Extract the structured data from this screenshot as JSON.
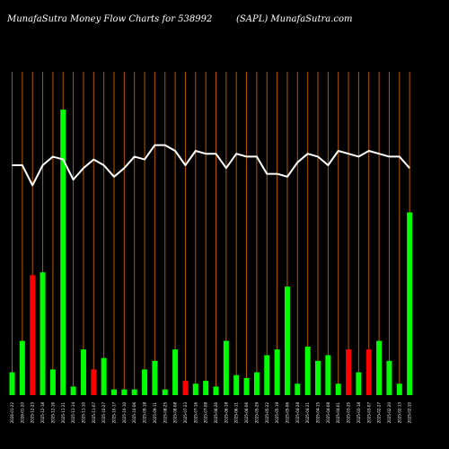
{
  "header": {
    "left": "MunafaSutra  Money Flow  Charts for 538992",
    "right": "(SAPL) MunafaSutra.com"
  },
  "chart_data": {
    "type": "bar",
    "title": "MunafaSutra  Money Flow  Charts for 538992",
    "subtitle": "(SAPL) MunafaSutra.com",
    "ylim": [
      0,
      100
    ],
    "grid": true,
    "categories": [
      "2026-01-22",
      "2026-01-20",
      "2025-12-23",
      "2025-12-18",
      "2025-12-16",
      "2025-11-21",
      "2025-11-14",
      "2025-11-10",
      "2025-11-07",
      "2025-10-27",
      "2025-10-17",
      "2025-10-10",
      "2025-10-06",
      "2025-09-18",
      "2025-09-11",
      "2025-08-25",
      "2025-08-08",
      "2025-07-23",
      "2025-07-16",
      "2025-07-08",
      "2025-06-26",
      "2025-06-18",
      "2025-06-11",
      "2025-06-06",
      "2025-05-29",
      "2025-05-22",
      "2025-05-19",
      "2025-05-06",
      "2025-04-28",
      "2025-04-21",
      "2025-04-15",
      "2025-04-08",
      "2025-04-01",
      "2025-03-25",
      "2025-03-18",
      "2025-03-07",
      "2025-02-27",
      "2025-02-20",
      "2025-02-13",
      "2025-02-10"
    ],
    "series": [
      {
        "values": [
          8,
          19,
          42,
          43,
          9,
          100,
          3,
          16,
          9,
          13,
          2,
          2,
          2,
          9,
          12,
          2,
          16,
          5,
          4,
          5,
          3,
          19,
          7,
          6,
          8,
          14,
          16,
          38,
          4,
          17,
          12,
          14,
          4,
          16,
          8,
          16,
          19,
          12,
          4,
          64
        ],
        "colors": [
          "green",
          "green",
          "red",
          "green",
          "green",
          "green",
          "green",
          "green",
          "red",
          "green",
          "green",
          "green",
          "green",
          "green",
          "green",
          "green",
          "green",
          "red",
          "green",
          "green",
          "green",
          "green",
          "green",
          "green",
          "green",
          "green",
          "green",
          "green",
          "green",
          "green",
          "green",
          "green",
          "green",
          "red",
          "green",
          "red",
          "green",
          "green",
          "green",
          "green"
        ]
      },
      {
        "values": [
          80,
          80,
          73,
          80,
          83,
          82,
          75,
          79,
          82,
          80,
          76,
          79,
          83,
          82,
          87,
          87,
          85,
          80,
          85,
          84,
          84,
          79,
          84,
          83,
          83,
          77,
          77,
          76,
          81,
          84,
          83,
          80,
          85,
          84,
          83,
          85,
          84,
          83,
          83,
          79
        ]
      }
    ],
    "colors": {
      "green": "#00ff00",
      "red": "#ff0000",
      "line": "#ffffff",
      "grid": "#b35900",
      "background": "#000000"
    }
  }
}
